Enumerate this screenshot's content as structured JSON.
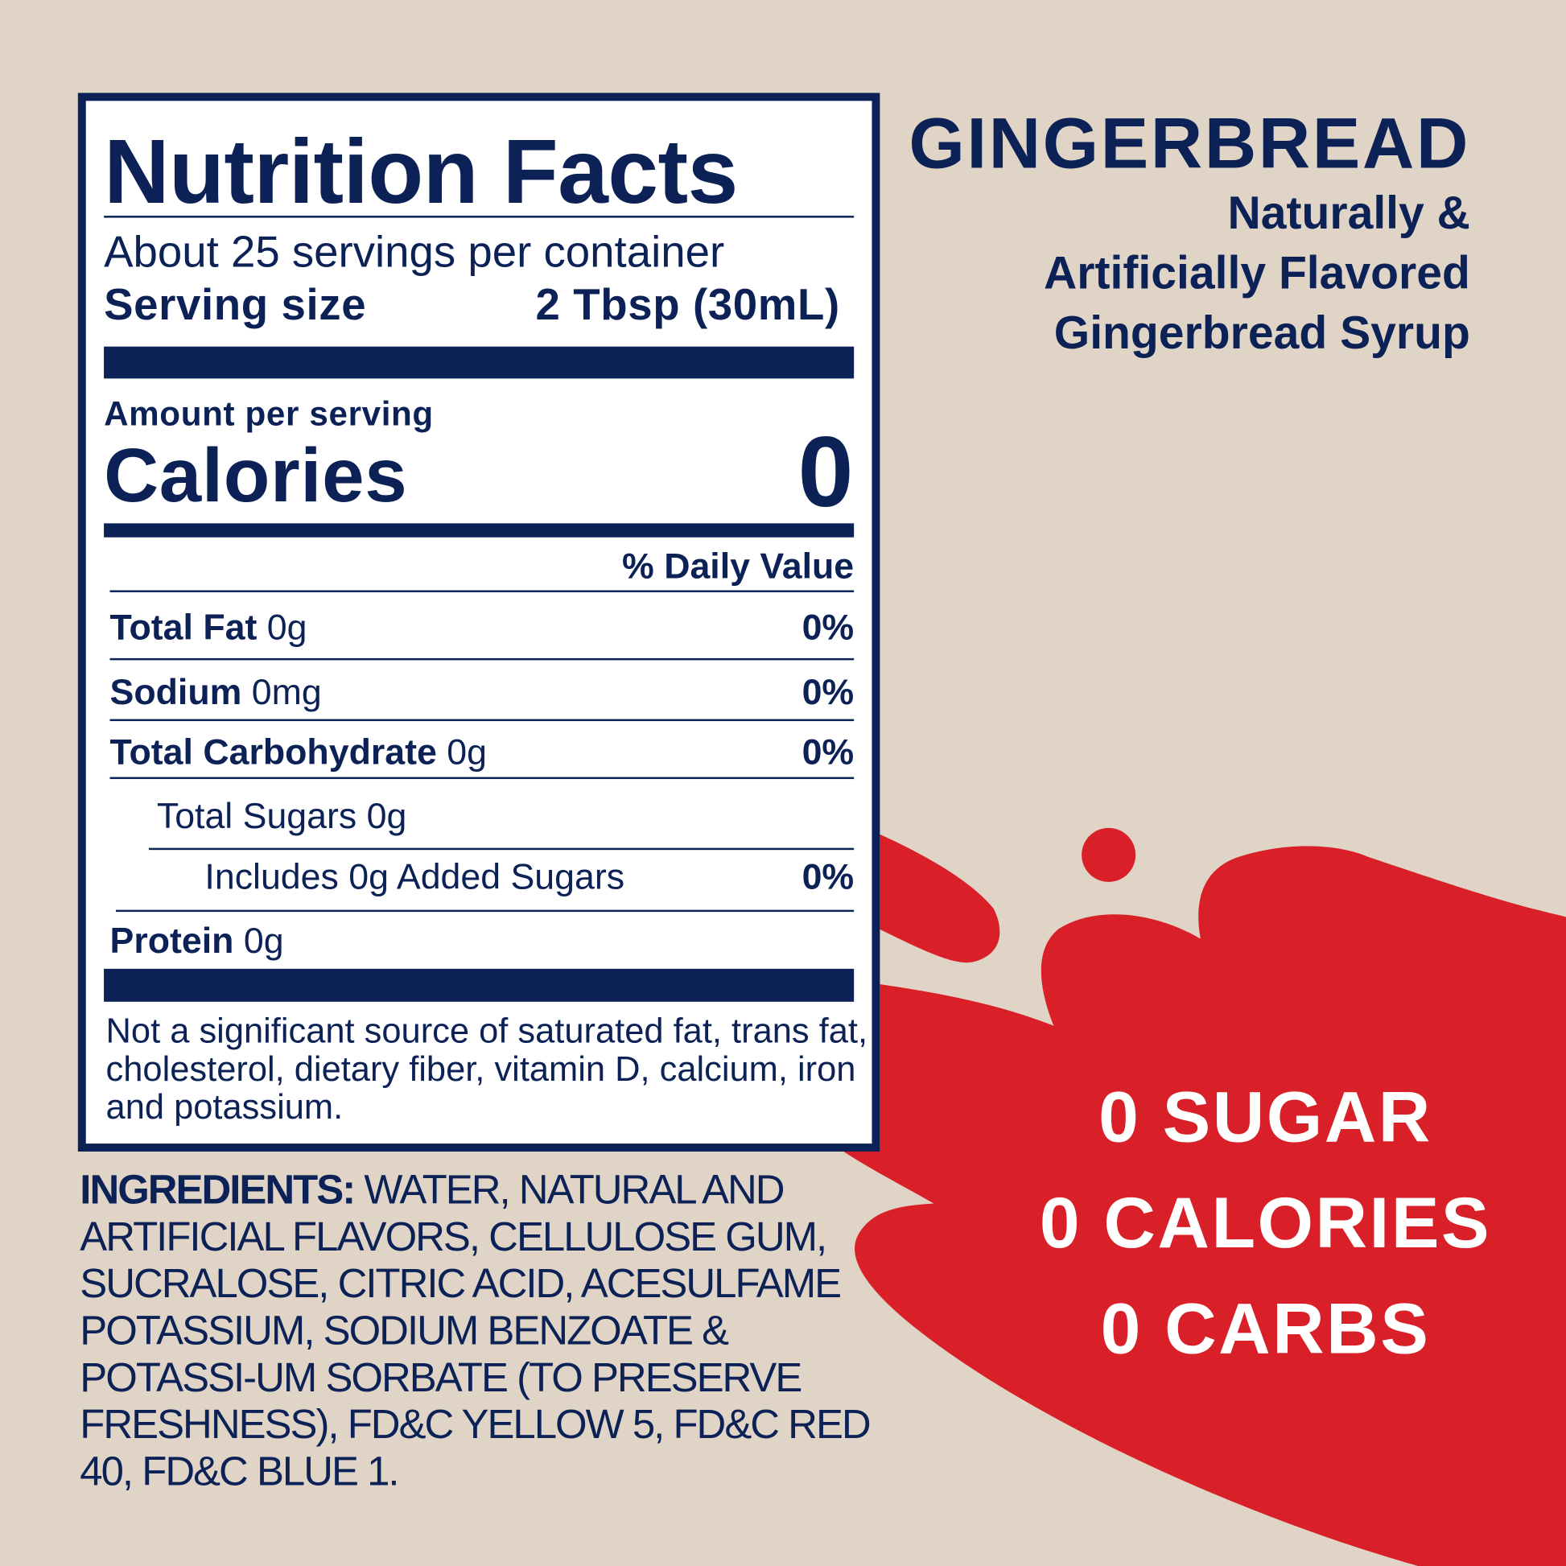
{
  "colors": {
    "background": "#e0d4c7",
    "navy": "#0c2257",
    "red": "#d92028",
    "white": "#ffffff"
  },
  "label": {
    "title": "Nutrition Facts",
    "servings": "About 25 servings per container",
    "serving_size_label": "Serving size",
    "serving_size_value": "2 Tbsp (30mL)",
    "amount_per_serving": "Amount per serving",
    "calories_label": "Calories",
    "calories_value": "0",
    "daily_value_header": "% Daily Value",
    "rows": [
      {
        "name": "Total Fat",
        "amount": "0g",
        "dv": "0%"
      },
      {
        "name": "Sodium",
        "amount": "0mg",
        "dv": "0%"
      },
      {
        "name": "Total Carbohydrate",
        "amount": "0g",
        "dv": "0%"
      },
      {
        "name": "Total Sugars 0g",
        "amount": "",
        "dv": ""
      },
      {
        "name": "Includes 0g Added Sugars",
        "amount": "",
        "dv": "0%"
      },
      {
        "name": "Protein",
        "amount": "0g",
        "dv": ""
      }
    ],
    "footnote": "Not a significant source of saturated fat, trans fat, cholesterol, dietary fiber, vitamin D, calcium, iron and potassium."
  },
  "ingredients": {
    "label": "INGREDIENTS:",
    "text": " WATER, NATURAL AND ARTIFICIAL FLAVORS, CELLULOSE GUM, SUCRALOSE, CITRIC ACID, ACESULFAME POTASSIUM, SODIUM BENZOATE & POTASSI-UM SORBATE (TO PRESERVE FRESHNESS), FD&C YELLOW 5, FD&C RED 40, FD&C BLUE 1."
  },
  "product": {
    "name": "GINGERBREAD",
    "desc": [
      "Naturally &",
      "Artificially Flavored",
      "Gingerbread Syrup"
    ]
  },
  "claims": [
    "0 SUGAR",
    "0 CALORIES",
    "0 CARBS"
  ]
}
